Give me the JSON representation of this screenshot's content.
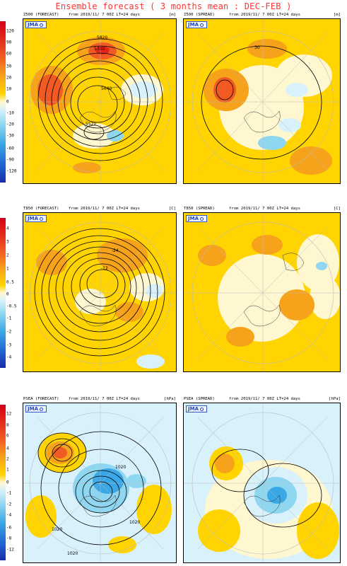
{
  "title": "Ensemble forecast ( 3 months mean : DEC-FEB )",
  "logo_text": "JMA",
  "colors": {
    "strong_red": "#e2261a",
    "red": "#f15a22",
    "orange": "#f7a21b",
    "yellow": "#ffd400",
    "cream": "#fff7cf",
    "pale_blue": "#d8f1fb",
    "light_blue": "#8fd6f0",
    "blue": "#3aa7e6",
    "deep_blue": "#1e5fd0"
  },
  "rows": [
    {
      "colorbar_ticks": [
        "120",
        "90",
        "60",
        "30",
        "20",
        "10",
        "0",
        "-10",
        "-20",
        "-30",
        "-60",
        "-90",
        "-120"
      ],
      "forecast": {
        "label": "Z500 (FORECAST)",
        "from": "from   2019/11/ 7 00Z LT=24 days",
        "unit": "[m]",
        "contour_labels": [
          "5820",
          "5700",
          "5640",
          "5520"
        ]
      },
      "spread": {
        "label": "Z500 (SPREAD)",
        "from": "from   2019/11/ 7 00Z LT=24 days",
        "unit": "[m]",
        "contour_labels": [
          "30"
        ]
      }
    },
    {
      "colorbar_ticks": [
        "4",
        "3",
        "2",
        "1",
        "0.5",
        "0",
        "-0.5",
        "-1",
        "-2",
        "-3",
        "-4"
      ],
      "forecast": {
        "label": "T850 (FORECAST)",
        "from": "from   2019/11/ 7 00Z LT=24 days",
        "unit": "[C]",
        "contour_labels": [
          "-24",
          "-12"
        ]
      },
      "spread": {
        "label": "T850 (SPREAD)",
        "from": "from   2019/11/ 7 00Z LT=24 days",
        "unit": "[C]",
        "contour_labels": []
      }
    },
    {
      "colorbar_ticks": [
        "12",
        "8",
        "6",
        "4",
        "2",
        "1",
        "0",
        "-1",
        "-2",
        "-4",
        "-6",
        "-8",
        "-12"
      ],
      "forecast": {
        "label": "PSEA (FORECAST)",
        "from": "from   2019/11/ 7 00Z LT=24 days",
        "unit": "[hPa]",
        "contour_labels": [
          "1020",
          "1020",
          "1020",
          "1020"
        ]
      },
      "spread": {
        "label": "PSEA (SPREAD)",
        "from": "from   2019/11/ 7 00Z LT=24 days",
        "unit": "[hPa]",
        "contour_labels": []
      }
    }
  ]
}
